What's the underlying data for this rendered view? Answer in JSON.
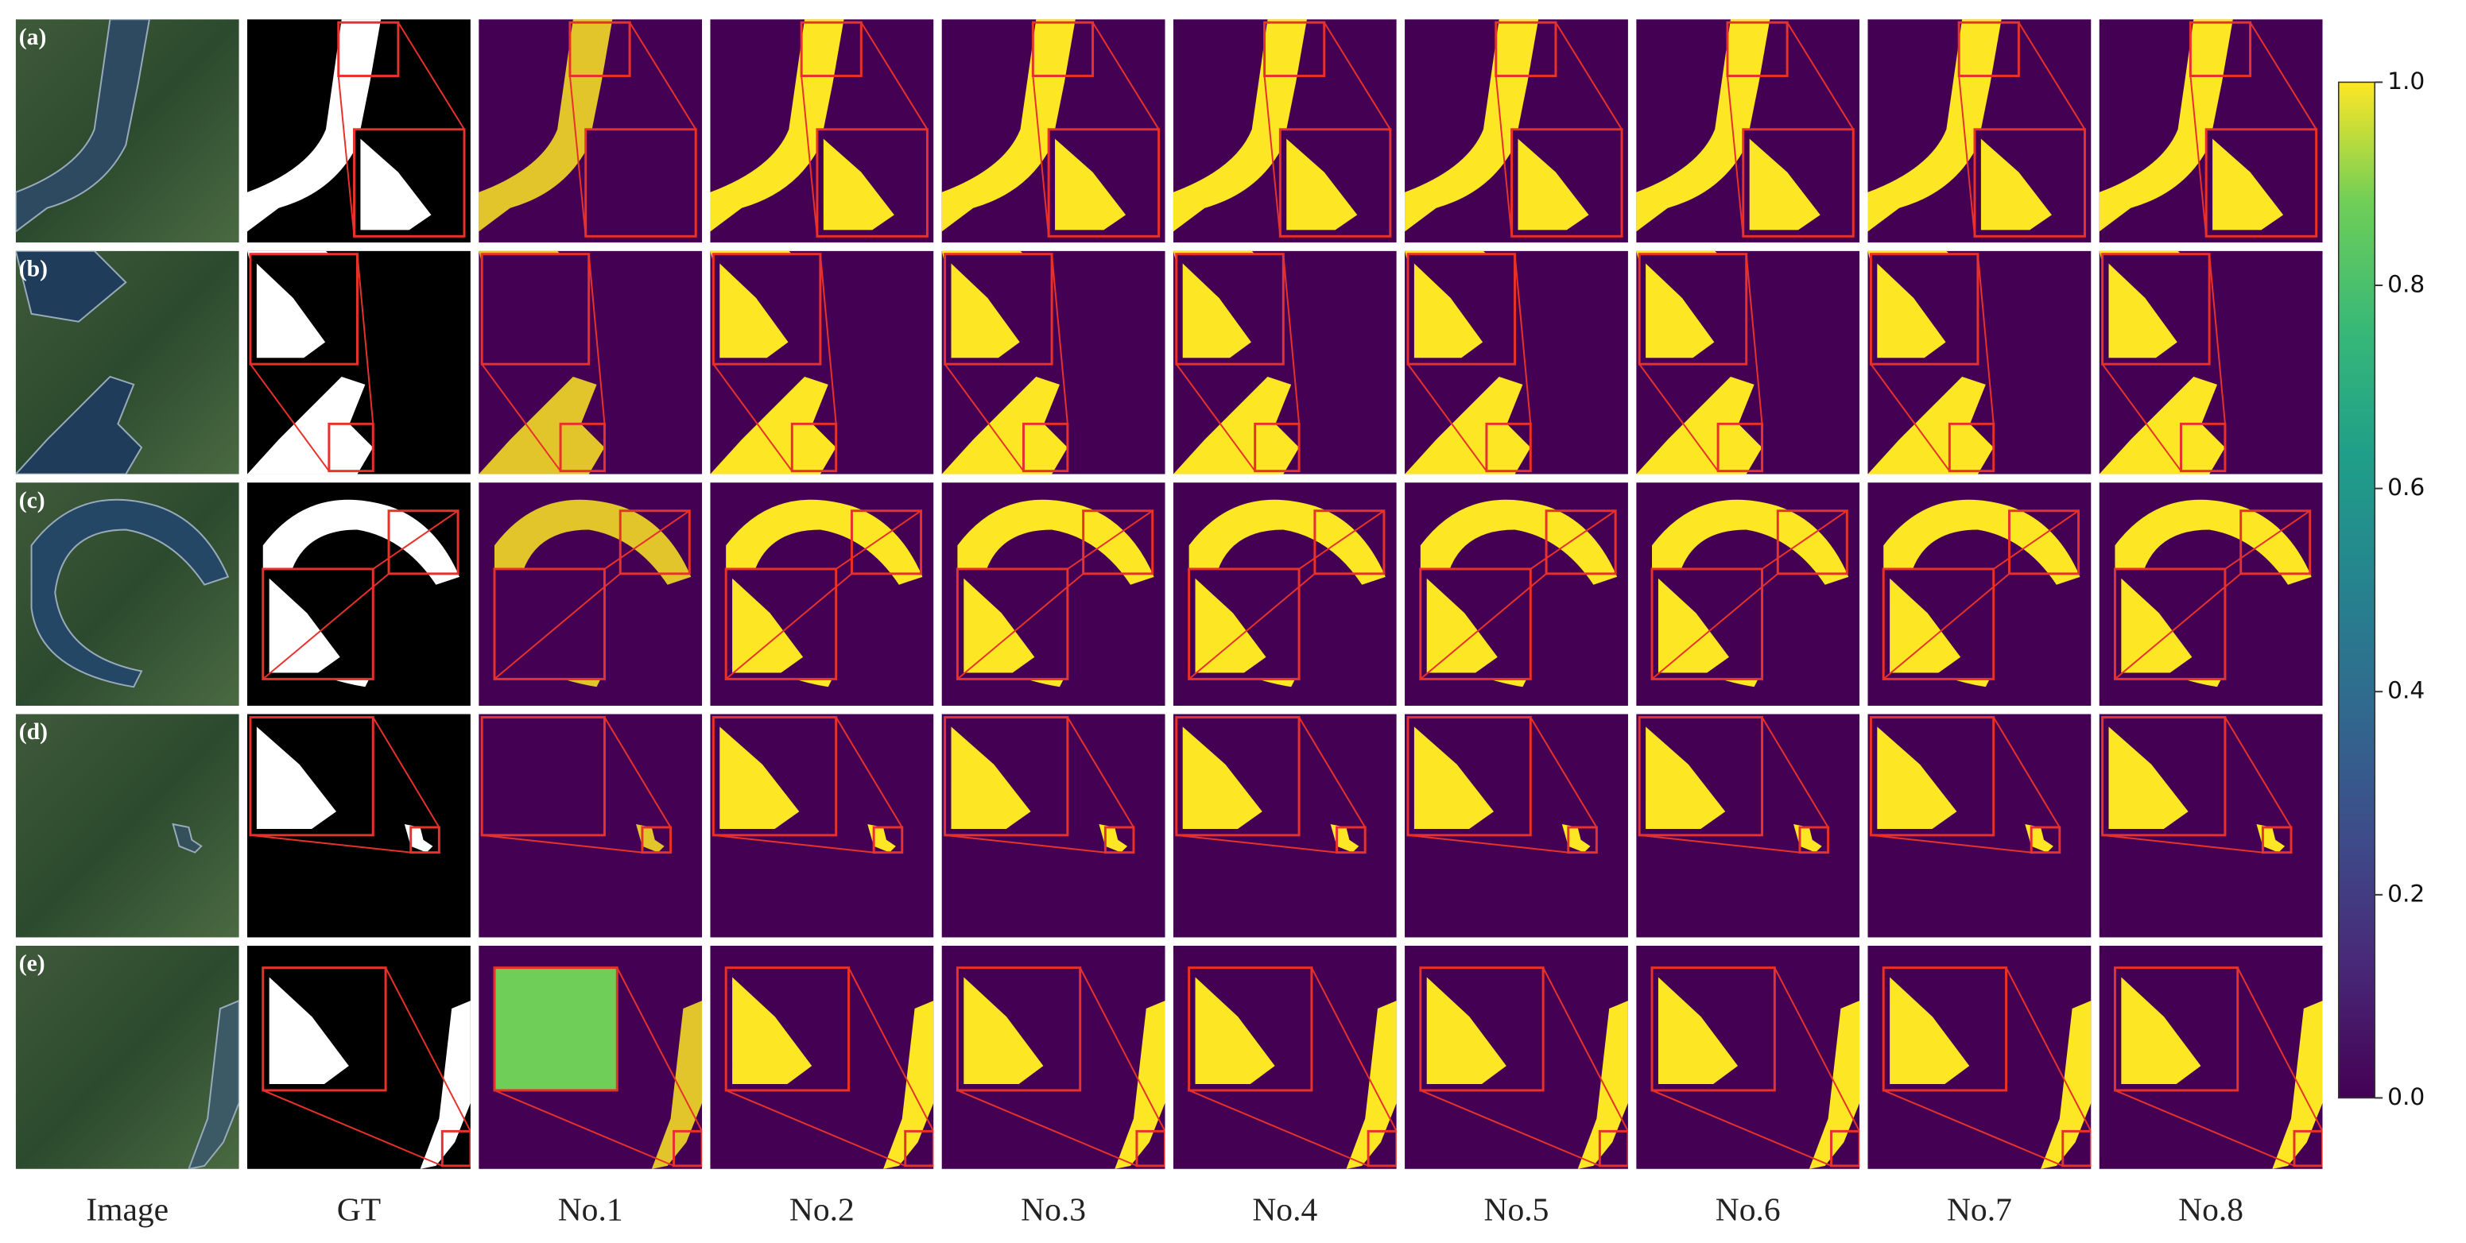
{
  "columns": [
    "Image",
    "GT",
    "No.1",
    "No.2",
    "No.3",
    "No.4",
    "No.5",
    "No.6",
    "No.7",
    "No.8"
  ],
  "rows": [
    "(a)",
    "(b)",
    "(c)",
    "(d)",
    "(e)"
  ],
  "colorbar": {
    "ticks": [
      {
        "value": 0,
        "label": "0.0"
      },
      0.2,
      0.4,
      0.6,
      0.8,
      {
        "value": 1,
        "label": "1.0"
      }
    ]
  }
}
